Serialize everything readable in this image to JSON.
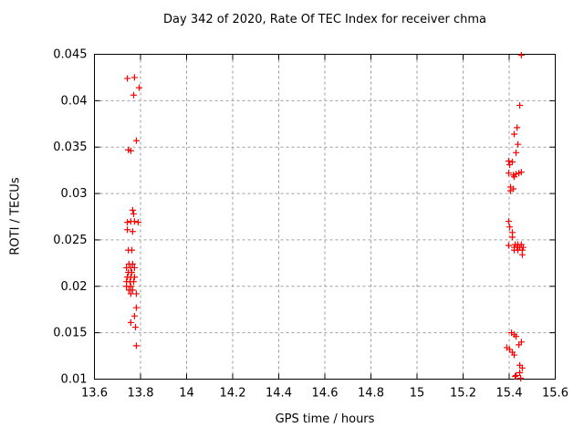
{
  "page": {
    "background": "#ffffff"
  },
  "chart_data": {
    "type": "scatter",
    "title": "Day 342 of 2020, Rate Of TEC Index for receiver chma",
    "xlabel": "GPS time / hours",
    "ylabel": "ROTI / TECUs",
    "xlim": [
      13.6,
      15.6
    ],
    "ylim": [
      0.01,
      0.045
    ],
    "xticks": [
      13.6,
      13.8,
      14,
      14.2,
      14.4,
      14.6,
      14.8,
      15,
      15.2,
      15.4,
      15.6
    ],
    "xtick_labels": [
      "13.6",
      "13.8",
      "14",
      "14.2",
      "14.4",
      "14.6",
      "14.8",
      "15",
      "15.2",
      "15.4",
      "15.6"
    ],
    "yticks": [
      0.01,
      0.015,
      0.02,
      0.025,
      0.03,
      0.035,
      0.04,
      0.045
    ],
    "ytick_labels": [
      "0.01",
      "0.015",
      "0.02",
      "0.025",
      "0.03",
      "0.035",
      "0.04",
      "0.045"
    ],
    "grid": true,
    "legend_position": "none",
    "marker": {
      "shape": "plus",
      "color": "#ff0000",
      "size": 7
    },
    "axis_color": "#000000",
    "grid_color": "#9e9e9e",
    "series": [
      {
        "name": "ROTI",
        "points": [
          [
            13.743,
            0.0424
          ],
          [
            13.774,
            0.0425
          ],
          [
            13.794,
            0.0414
          ],
          [
            13.77,
            0.0406
          ],
          [
            13.782,
            0.0357
          ],
          [
            13.747,
            0.0347
          ],
          [
            13.758,
            0.0346
          ],
          [
            13.766,
            0.0282
          ],
          [
            13.77,
            0.0278
          ],
          [
            13.743,
            0.0269
          ],
          [
            13.758,
            0.027
          ],
          [
            13.774,
            0.027
          ],
          [
            13.79,
            0.0269
          ],
          [
            13.743,
            0.0261
          ],
          [
            13.766,
            0.0259
          ],
          [
            13.747,
            0.0239
          ],
          [
            13.762,
            0.0239
          ],
          [
            13.75,
            0.0224
          ],
          [
            13.766,
            0.0224
          ],
          [
            13.739,
            0.022
          ],
          [
            13.758,
            0.022
          ],
          [
            13.774,
            0.022
          ],
          [
            13.747,
            0.0215
          ],
          [
            13.762,
            0.0215
          ],
          [
            13.743,
            0.021
          ],
          [
            13.758,
            0.021
          ],
          [
            13.774,
            0.021
          ],
          [
            13.739,
            0.0205
          ],
          [
            13.754,
            0.0205
          ],
          [
            13.77,
            0.0205
          ],
          [
            13.739,
            0.02
          ],
          [
            13.758,
            0.02
          ],
          [
            13.75,
            0.0196
          ],
          [
            13.766,
            0.0196
          ],
          [
            13.758,
            0.0192
          ],
          [
            13.782,
            0.0192
          ],
          [
            13.782,
            0.0177
          ],
          [
            13.774,
            0.0168
          ],
          [
            13.758,
            0.0161
          ],
          [
            13.778,
            0.0156
          ],
          [
            13.782,
            0.0136
          ],
          [
            15.453,
            0.0449
          ],
          [
            15.446,
            0.0395
          ],
          [
            15.434,
            0.0371
          ],
          [
            15.422,
            0.0364
          ],
          [
            15.438,
            0.0353
          ],
          [
            15.43,
            0.0344
          ],
          [
            15.398,
            0.0335
          ],
          [
            15.414,
            0.0334
          ],
          [
            15.402,
            0.0331
          ],
          [
            15.398,
            0.0322
          ],
          [
            15.418,
            0.032
          ],
          [
            15.43,
            0.0321
          ],
          [
            15.442,
            0.0322
          ],
          [
            15.453,
            0.0323
          ],
          [
            15.422,
            0.0318
          ],
          [
            15.406,
            0.0307
          ],
          [
            15.418,
            0.0305
          ],
          [
            15.406,
            0.0303
          ],
          [
            15.398,
            0.027
          ],
          [
            15.402,
            0.0264
          ],
          [
            15.414,
            0.0258
          ],
          [
            15.414,
            0.0253
          ],
          [
            15.398,
            0.0244
          ],
          [
            15.426,
            0.0245
          ],
          [
            15.438,
            0.0245
          ],
          [
            15.453,
            0.0245
          ],
          [
            15.422,
            0.0242
          ],
          [
            15.434,
            0.0242
          ],
          [
            15.446,
            0.0242
          ],
          [
            15.461,
            0.0242
          ],
          [
            15.422,
            0.0239
          ],
          [
            15.438,
            0.0239
          ],
          [
            15.457,
            0.0239
          ],
          [
            15.457,
            0.0234
          ],
          [
            15.41,
            0.015
          ],
          [
            15.422,
            0.0148
          ],
          [
            15.43,
            0.0146
          ],
          [
            15.453,
            0.014
          ],
          [
            15.442,
            0.0137
          ],
          [
            15.39,
            0.0134
          ],
          [
            15.402,
            0.0132
          ],
          [
            15.414,
            0.0129
          ],
          [
            15.422,
            0.0126
          ],
          [
            15.446,
            0.0115
          ],
          [
            15.457,
            0.0112
          ],
          [
            15.446,
            0.0107
          ],
          [
            15.43,
            0.0104
          ],
          [
            15.426,
            0.0103
          ],
          [
            15.45,
            0.0101
          ]
        ]
      }
    ]
  }
}
